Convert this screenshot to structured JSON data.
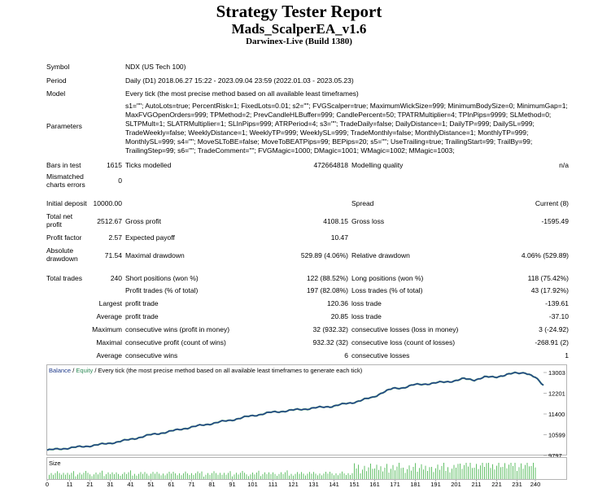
{
  "header": {
    "title": "Strategy Tester Report",
    "expert": "Mads_ScalperEA_v1.6",
    "server": "Darwinex-Live (Build 1380)"
  },
  "info": {
    "symbol_label": "Symbol",
    "symbol": "NDX (US Tech 100)",
    "period_label": "Period",
    "period": "Daily (D1) 2018.06.27 15:22 - 2023.09.04 23:59 (2022.01.03 - 2023.05.23)",
    "model_label": "Model",
    "model": "Every tick (the most precise method based on all available least timeframes)",
    "parameters_label": "Parameters",
    "parameters": "s1=\"\"; AutoLots=true; PercentRisk=1; FixedLots=0.01; s2=\"\"; FVGScalper=true; MaximumWickSize=999; MinimumBodySize=0; MinimumGap=1; MaxFVGOpenOrders=999; TPMethod=2; PrevCandleHLBuffer=999; CandlePercent=50; TPATRMultiplier=4; TPInPips=9999; SLMethod=0; SLTPMult=1; SLATRMultiplier=1; SLInPips=999; ATRPeriod=4; s3=\"\"; TradeDaily=false; DailyDistance=1; DailyTP=999; DailySL=999; TradeWeekly=false; WeeklyDistance=1; WeeklyTP=999; WeeklySL=999; TradeMonthly=false; MonthlyDistance=1; MonthlyTP=999; MonthlySL=999; s4=\"\"; MoveSLToBE=false; MoveToBEATPips=99; BEPips=20; s5=\"\"; UseTrailing=true; TrailingStart=99; TrailBy=99; TrailingStep=99; s6=\"\"; TradeComment=\"\"; FVGMagic=1000; DMagic=1001; WMagic=1002; MMagic=1003;"
  },
  "stats": {
    "bars_label": "Bars in test",
    "bars": "1615",
    "ticks_label": "Ticks modelled",
    "ticks": "472664818",
    "quality_label": "Modelling quality",
    "quality": "n/a",
    "mismatch_label_1": "Mismatched",
    "mismatch_label_2": "charts errors",
    "mismatch": "0",
    "deposit_label": "Initial deposit",
    "deposit": "10000.00",
    "spread_label": "Spread",
    "spread": "Current (8)",
    "netprofit_label_1": "Total net",
    "netprofit_label_2": "profit",
    "netprofit": "2512.67",
    "grossprofit_label": "Gross profit",
    "grossprofit": "4108.15",
    "grossloss_label": "Gross loss",
    "grossloss": "-1595.49",
    "pf_label": "Profit factor",
    "pf": "2.57",
    "payoff_label": "Expected payoff",
    "payoff": "10.47",
    "absdd_label_1": "Absolute",
    "absdd_label_2": "drawdown",
    "absdd": "71.54",
    "maxdd_label": "Maximal drawdown",
    "maxdd": "529.89 (4.06%)",
    "reldd_label": "Relative drawdown",
    "reldd": "4.06% (529.89)",
    "trades_label": "Total trades",
    "trades": "240",
    "short_label": "Short positions (won %)",
    "short": "122 (88.52%)",
    "long_label": "Long positions (won %)",
    "long": "118 (75.42%)",
    "pt_label": "Profit trades (% of total)",
    "pt": "197 (82.08%)",
    "lt_label": "Loss trades (% of total)",
    "lt": "43 (17.92%)",
    "largest_label": "Largest",
    "lpt_label": "profit trade",
    "lpt": "120.36",
    "llt_label": "loss trade",
    "llt": "-139.61",
    "average_label": "Average",
    "apt_label": "profit trade",
    "apt": "20.85",
    "alt_label": "loss trade",
    "alt": "-37.10",
    "maximum_label": "Maximum",
    "mcw_label": "consecutive wins (profit in money)",
    "mcw": "32 (932.32)",
    "mcl_label": "consecutive losses (loss in money)",
    "mcl": "3 (-24.92)",
    "maximal_label": "Maximal",
    "mcp_label": "consecutive profit (count of wins)",
    "mcp": "932.32 (32)",
    "mcls_label": "consecutive loss (count of losses)",
    "mcls": "-268.91 (2)",
    "average2_label": "Average",
    "acw_label": "consecutive wins",
    "acw": "6",
    "acl_label": "consecutive losses",
    "acl": "1"
  },
  "chart_data": {
    "type": "line",
    "legend_balance": "Balance",
    "legend_sep": "/",
    "legend_equity": "Equity",
    "legend_rest": "/ Every tick (the most precise method based on all available least timeframes to generate each tick)",
    "balance_color": "#1e3a8a",
    "equity_color": "#2e8b57",
    "y_ticks": [
      "13003",
      "12201",
      "11400",
      "10599",
      "9797"
    ],
    "ylim": [
      9797,
      13003
    ],
    "x_ticks": [
      "0",
      "11",
      "21",
      "31",
      "41",
      "51",
      "61",
      "71",
      "81",
      "91",
      "101",
      "111",
      "121",
      "131",
      "141",
      "151",
      "161",
      "171",
      "181",
      "191",
      "201",
      "211",
      "221",
      "231",
      "240"
    ],
    "xlim": [
      0,
      244
    ],
    "size_label": "Size",
    "series": [
      {
        "name": "Balance",
        "x": [
          0,
          10,
          20,
          30,
          40,
          50,
          60,
          70,
          80,
          90,
          100,
          110,
          120,
          130,
          140,
          150,
          160,
          165,
          170,
          175,
          180,
          190,
          200,
          205,
          210,
          215,
          220,
          225,
          230,
          235,
          240,
          244
        ],
        "values": [
          10000,
          10080,
          10160,
          10260,
          10400,
          10580,
          10720,
          10880,
          11020,
          11160,
          11320,
          11460,
          11540,
          11620,
          11700,
          11840,
          12040,
          12240,
          12380,
          12420,
          12520,
          12590,
          12680,
          12760,
          12720,
          12820,
          12830,
          12900,
          12980,
          13003,
          12800,
          12512
        ]
      }
    ]
  }
}
